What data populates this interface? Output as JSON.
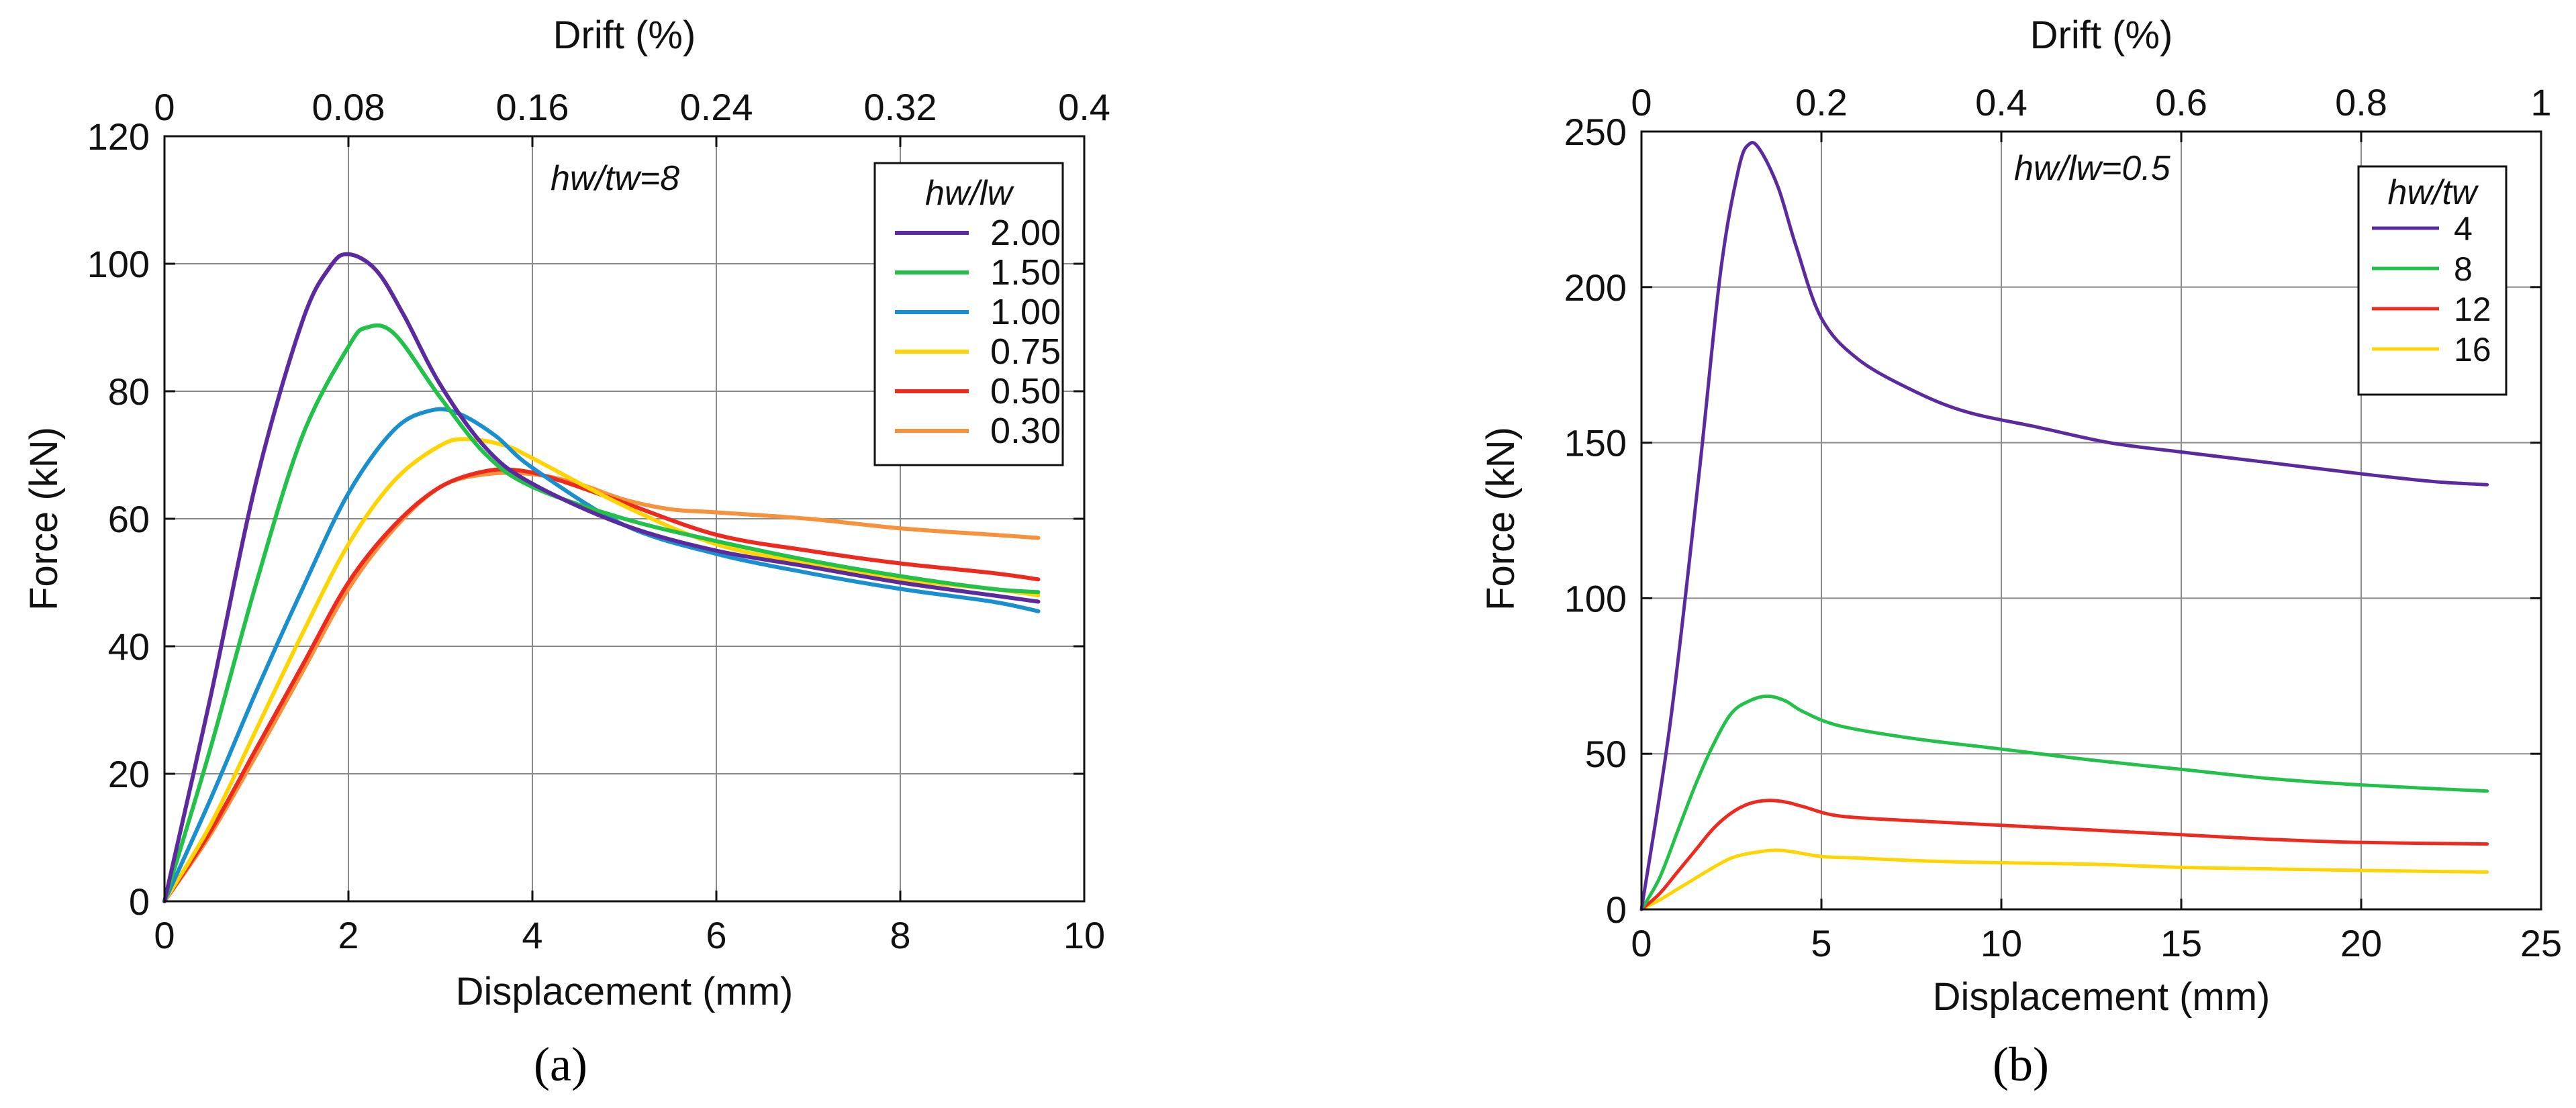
{
  "chart_data": [
    {
      "type": "line",
      "panel_label": "(a)",
      "xlabel": "Displacement (mm)",
      "ylabel": "Force (kN)",
      "x2label": "Drift (%)",
      "xlim": [
        0,
        10
      ],
      "ylim": [
        0,
        120
      ],
      "x_ticks": [
        "0",
        "2",
        "4",
        "6",
        "8",
        "10"
      ],
      "y_ticks": [
        "0",
        "20",
        "40",
        "60",
        "80",
        "100",
        "120"
      ],
      "x2_ticks": [
        "0",
        "0.08",
        "0.16",
        "0.24",
        "0.32",
        "0.4"
      ],
      "grid": true,
      "annotation": "hw/tw=8",
      "legend_title": "hw/lw",
      "legend_position": "top-right",
      "series": [
        {
          "name": "2.00",
          "color": "#5B2A9E",
          "points": [
            [
              0,
              0
            ],
            [
              0.5,
              32
            ],
            [
              1.0,
              66
            ],
            [
              1.5,
              91
            ],
            [
              1.8,
              99.5
            ],
            [
              2.0,
              101.5
            ],
            [
              2.3,
              99
            ],
            [
              2.6,
              92
            ],
            [
              3.0,
              81
            ],
            [
              3.5,
              71
            ],
            [
              4.0,
              65.5
            ],
            [
              5.0,
              59
            ],
            [
              6.0,
              55
            ],
            [
              7.0,
              52.5
            ],
            [
              8.0,
              50
            ],
            [
              9.0,
              48
            ],
            [
              9.5,
              47
            ]
          ]
        },
        {
          "name": "1.50",
          "color": "#22C24A",
          "points": [
            [
              0,
              0
            ],
            [
              0.5,
              24
            ],
            [
              1.0,
              50
            ],
            [
              1.5,
              73
            ],
            [
              2.0,
              87
            ],
            [
              2.2,
              90
            ],
            [
              2.5,
              89
            ],
            [
              3.0,
              79
            ],
            [
              3.5,
              70
            ],
            [
              4.0,
              65
            ],
            [
              5.0,
              60
            ],
            [
              6.0,
              56.5
            ],
            [
              7.0,
              53.5
            ],
            [
              8.0,
              51
            ],
            [
              9.0,
              49
            ],
            [
              9.5,
              48.5
            ]
          ]
        },
        {
          "name": "1.00",
          "color": "#1A8FD0",
          "points": [
            [
              0,
              0
            ],
            [
              0.5,
              16
            ],
            [
              1.0,
              33
            ],
            [
              1.5,
              49
            ],
            [
              2.0,
              64
            ],
            [
              2.5,
              74
            ],
            [
              2.9,
              77
            ],
            [
              3.2,
              76.5
            ],
            [
              3.6,
              73
            ],
            [
              4.0,
              68
            ],
            [
              5.0,
              59
            ],
            [
              6.0,
              54.5
            ],
            [
              7.0,
              51.5
            ],
            [
              8.0,
              49
            ],
            [
              9.0,
              47
            ],
            [
              9.5,
              45.5
            ]
          ]
        },
        {
          "name": "0.75",
          "color": "#FFD400",
          "points": [
            [
              0,
              0
            ],
            [
              0.5,
              12
            ],
            [
              1.0,
              27
            ],
            [
              1.5,
              42
            ],
            [
              2.0,
              56
            ],
            [
              2.5,
              66
            ],
            [
              3.0,
              71.5
            ],
            [
              3.3,
              72.5
            ],
            [
              3.7,
              71.5
            ],
            [
              4.0,
              69.5
            ],
            [
              5.0,
              62
            ],
            [
              6.0,
              56
            ],
            [
              7.0,
              53
            ],
            [
              8.0,
              50.5
            ],
            [
              9.0,
              49
            ],
            [
              9.5,
              48
            ]
          ]
        },
        {
          "name": "0.50",
          "color": "#EE2A1F",
          "points": [
            [
              0,
              0
            ],
            [
              0.5,
              11
            ],
            [
              1.0,
              24
            ],
            [
              1.5,
              37
            ],
            [
              2.0,
              50
            ],
            [
              2.5,
              59
            ],
            [
              3.0,
              65
            ],
            [
              3.5,
              67.5
            ],
            [
              3.9,
              67.5
            ],
            [
              4.3,
              66
            ],
            [
              5.0,
              62.5
            ],
            [
              6.0,
              57.5
            ],
            [
              7.0,
              55
            ],
            [
              8.0,
              53
            ],
            [
              9.0,
              51.5
            ],
            [
              9.5,
              50.5
            ]
          ]
        },
        {
          "name": "0.30",
          "color": "#F7913B",
          "points": [
            [
              0,
              0
            ],
            [
              0.5,
              10.5
            ],
            [
              1.0,
              23
            ],
            [
              1.5,
              36
            ],
            [
              2.0,
              49
            ],
            [
              2.5,
              58.5
            ],
            [
              3.0,
              65
            ],
            [
              3.5,
              67
            ],
            [
              4.0,
              67
            ],
            [
              4.5,
              65.5
            ],
            [
              5.0,
              63
            ],
            [
              5.5,
              61.5
            ],
            [
              6.0,
              61
            ],
            [
              7.0,
              60
            ],
            [
              8.0,
              58.5
            ],
            [
              9.0,
              57.5
            ],
            [
              9.5,
              57
            ]
          ]
        }
      ]
    },
    {
      "type": "line",
      "panel_label": "(b)",
      "xlabel": "Displacement (mm)",
      "ylabel": "Force (kN)",
      "x2label": "Drift (%)",
      "xlim": [
        0,
        25
      ],
      "ylim": [
        0,
        250
      ],
      "x_ticks": [
        "0",
        "5",
        "10",
        "15",
        "20",
        "25"
      ],
      "y_ticks": [
        "0",
        "50",
        "100",
        "150",
        "200",
        "250"
      ],
      "x2_ticks": [
        "0",
        "0.2",
        "0.4",
        "0.6",
        "0.8",
        "1"
      ],
      "grid": true,
      "annotation": "hw/lw=0.5",
      "legend_title": "hw/tw",
      "legend_position": "top-right",
      "series": [
        {
          "name": "4",
          "color": "#5B2A9E",
          "points": [
            [
              0,
              0
            ],
            [
              0.8,
              60
            ],
            [
              1.6,
              140
            ],
            [
              2.2,
              205
            ],
            [
              2.7,
              238
            ],
            [
              3.0,
              246
            ],
            [
              3.3,
              244
            ],
            [
              3.8,
              232
            ],
            [
              4.3,
              213
            ],
            [
              5.0,
              190
            ],
            [
              6.0,
              177
            ],
            [
              7.5,
              167
            ],
            [
              9.0,
              160
            ],
            [
              11.0,
              155
            ],
            [
              13.0,
              150
            ],
            [
              15.0,
              147
            ],
            [
              17.5,
              143.5
            ],
            [
              20.0,
              140
            ],
            [
              22.0,
              137.5
            ],
            [
              23.5,
              136.5
            ]
          ]
        },
        {
          "name": "8",
          "color": "#22C24A",
          "points": [
            [
              0,
              0
            ],
            [
              0.5,
              10
            ],
            [
              1.0,
              25
            ],
            [
              1.5,
              40
            ],
            [
              2.0,
              53
            ],
            [
              2.5,
              63
            ],
            [
              3.0,
              67
            ],
            [
              3.5,
              68.5
            ],
            [
              4.0,
              67
            ],
            [
              4.5,
              63.5
            ],
            [
              5.5,
              59
            ],
            [
              7.5,
              55
            ],
            [
              10.0,
              51.5
            ],
            [
              12.5,
              48
            ],
            [
              15.0,
              45
            ],
            [
              17.5,
              42
            ],
            [
              20.0,
              40
            ],
            [
              23.5,
              38
            ]
          ]
        },
        {
          "name": "12",
          "color": "#EE2A1F",
          "points": [
            [
              0,
              0
            ],
            [
              0.5,
              5
            ],
            [
              1.0,
              12
            ],
            [
              1.5,
              19
            ],
            [
              2.0,
              26
            ],
            [
              2.5,
              31
            ],
            [
              3.0,
              34
            ],
            [
              3.5,
              35
            ],
            [
              4.0,
              34.5
            ],
            [
              4.5,
              33
            ],
            [
              5.5,
              30
            ],
            [
              7.5,
              28.5
            ],
            [
              10.0,
              27
            ],
            [
              12.5,
              25.5
            ],
            [
              15.0,
              24
            ],
            [
              17.5,
              22.5
            ],
            [
              20.0,
              21.5
            ],
            [
              23.5,
              21
            ]
          ]
        },
        {
          "name": "16",
          "color": "#FFD400",
          "points": [
            [
              0,
              0
            ],
            [
              0.5,
              3
            ],
            [
              1.0,
              6.5
            ],
            [
              1.5,
              10
            ],
            [
              2.0,
              13.5
            ],
            [
              2.5,
              16.5
            ],
            [
              3.0,
              18
            ],
            [
              3.7,
              19
            ],
            [
              4.2,
              18.5
            ],
            [
              5.0,
              17
            ],
            [
              6.0,
              16.5
            ],
            [
              8.0,
              15.5
            ],
            [
              10.0,
              15
            ],
            [
              12.5,
              14.5
            ],
            [
              15.0,
              13.5
            ],
            [
              17.5,
              13
            ],
            [
              20.0,
              12.5
            ],
            [
              23.5,
              12
            ]
          ]
        }
      ]
    }
  ]
}
